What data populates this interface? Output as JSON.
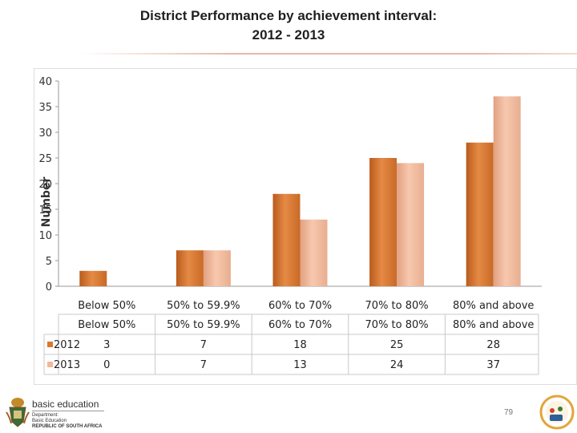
{
  "title_line1": "District Performance by achievement interval:",
  "title_line2": "2012 - 2013",
  "page_number": "79",
  "logo": {
    "main": "basic education",
    "line1": "Department:",
    "line2": "Basic Education",
    "line3": "REPUBLIC OF SOUTH AFRICA"
  },
  "chart_data": {
    "type": "bar",
    "ylabel": "Number",
    "ylim": [
      0,
      40
    ],
    "yticks": [
      0,
      5,
      10,
      15,
      20,
      25,
      30,
      35,
      40
    ],
    "categories": [
      "Below 50%",
      "50% to 59.9%",
      "60% to 70%",
      "70% to 80%",
      "80% and above"
    ],
    "table_headers": [
      "Below 50%",
      "50% to 59.9%",
      "60% to 70%",
      "70% to 80%",
      "80% and above"
    ],
    "series": [
      {
        "name": "2012",
        "values": [
          3,
          7,
          18,
          25,
          28
        ],
        "color": "#d9782f"
      },
      {
        "name": "2013",
        "values": [
          0,
          7,
          13,
          24,
          37
        ],
        "color": "#f2b89a"
      }
    ],
    "grid": false,
    "legend": "data-table"
  }
}
